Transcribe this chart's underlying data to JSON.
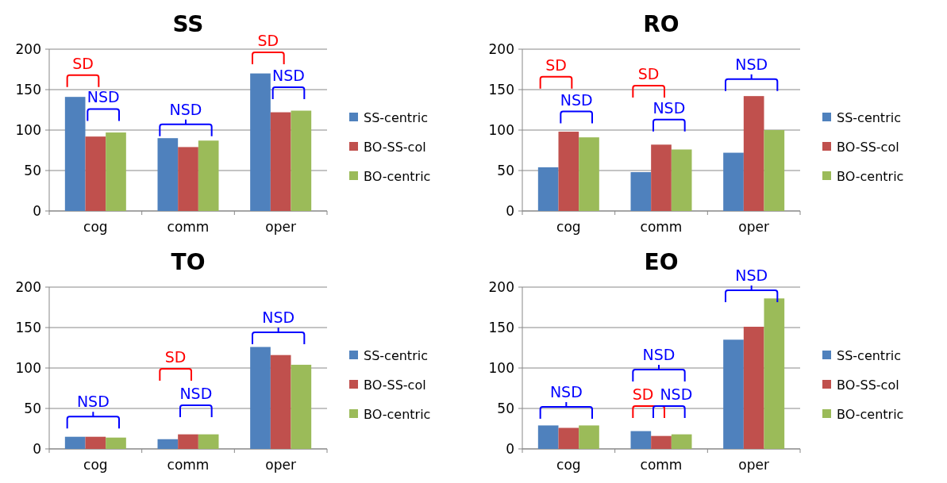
{
  "chart_data": [
    {
      "type": "bar",
      "title": "SS",
      "categories": [
        "cog",
        "comm",
        "oper"
      ],
      "ylim": [
        0,
        200
      ],
      "yticks": [
        0,
        50,
        100,
        150,
        200
      ],
      "grid": "y",
      "legend": "right",
      "series": [
        {
          "name": "SS-centric",
          "color": "#4f81bd",
          "values": [
            141,
            90,
            170
          ]
        },
        {
          "name": "BO-SS-col",
          "color": "#c0504d",
          "values": [
            92,
            79,
            122
          ]
        },
        {
          "name": "BO-centric",
          "color": "#9bbb59",
          "values": [
            97,
            87,
            124
          ]
        }
      ],
      "annotations": [
        "SD",
        "NSD",
        "NSD",
        "SD",
        "NSD"
      ]
    },
    {
      "type": "bar",
      "title": "RO",
      "categories": [
        "cog",
        "comm",
        "oper"
      ],
      "ylim": [
        0,
        200
      ],
      "yticks": [
        0,
        50,
        100,
        150,
        200
      ],
      "grid": "y",
      "legend": "right",
      "series": [
        {
          "name": "SS-centric",
          "color": "#4f81bd",
          "values": [
            54,
            48,
            72
          ]
        },
        {
          "name": "BO-SS-col",
          "color": "#c0504d",
          "values": [
            98,
            82,
            142
          ]
        },
        {
          "name": "BO-centric",
          "color": "#9bbb59",
          "values": [
            91,
            76,
            100
          ]
        }
      ],
      "annotations": [
        "SD",
        "NSD",
        "SD",
        "NSD",
        "NSD"
      ]
    },
    {
      "type": "bar",
      "title": "TO",
      "categories": [
        "cog",
        "comm",
        "oper"
      ],
      "ylim": [
        0,
        200
      ],
      "yticks": [
        0,
        50,
        100,
        150,
        200
      ],
      "grid": "y",
      "legend": "right",
      "series": [
        {
          "name": "SS-centric",
          "color": "#4f81bd",
          "values": [
            15,
            12,
            126
          ]
        },
        {
          "name": "BO-SS-col",
          "color": "#c0504d",
          "values": [
            15,
            18,
            116
          ]
        },
        {
          "name": "BO-centric",
          "color": "#9bbb59",
          "values": [
            14,
            18,
            104
          ]
        }
      ],
      "annotations": [
        "NSD",
        "SD",
        "NSD",
        "NSD"
      ]
    },
    {
      "type": "bar",
      "title": "EO",
      "categories": [
        "cog",
        "comm",
        "oper"
      ],
      "ylim": [
        0,
        200
      ],
      "yticks": [
        0,
        50,
        100,
        150,
        200
      ],
      "grid": "y",
      "legend": "right",
      "series": [
        {
          "name": "SS-centric",
          "color": "#4f81bd",
          "values": [
            29,
            22,
            135
          ]
        },
        {
          "name": "BO-SS-col",
          "color": "#c0504d",
          "values": [
            26,
            16,
            151
          ]
        },
        {
          "name": "BO-centric",
          "color": "#9bbb59",
          "values": [
            29,
            18,
            186
          ]
        }
      ],
      "annotations": [
        "NSD",
        "NSD",
        "SD",
        "NSD",
        "NSD"
      ]
    }
  ]
}
